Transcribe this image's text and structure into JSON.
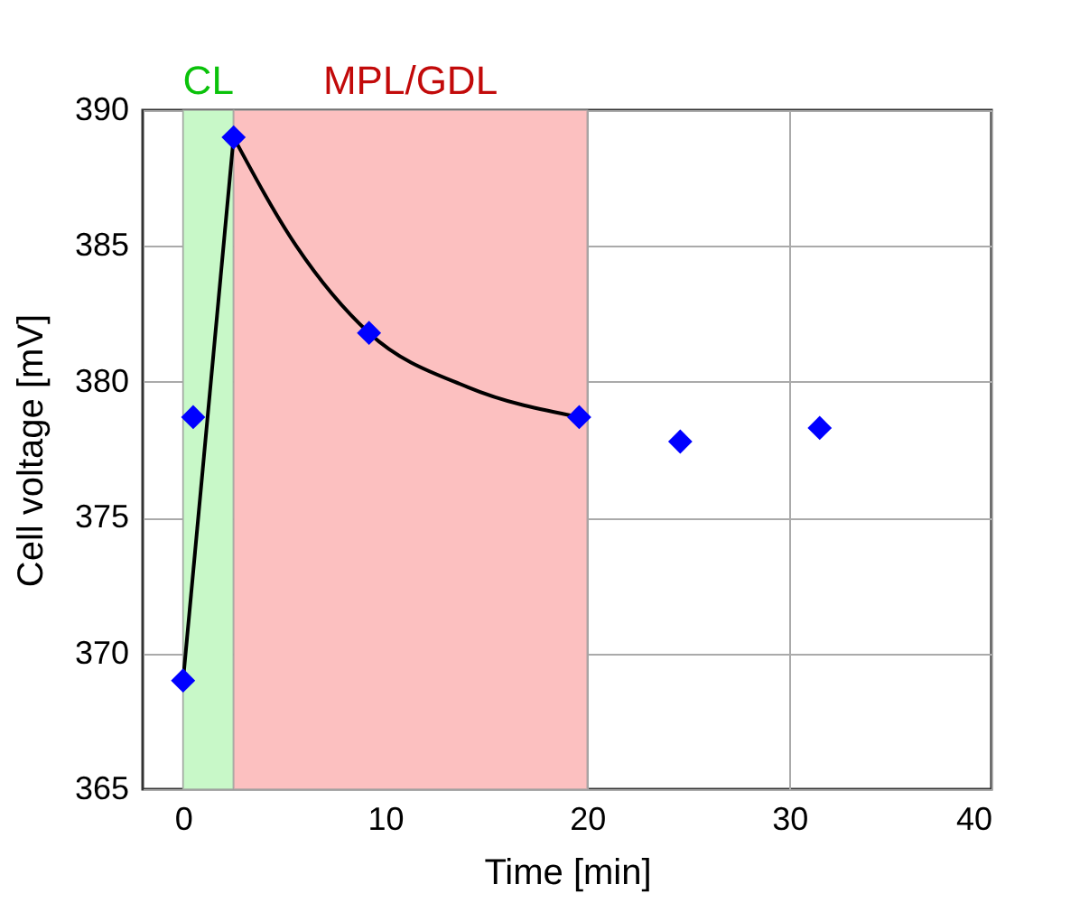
{
  "chart_data": {
    "type": "scatter",
    "xlabel": "Time [min]",
    "ylabel": "Cell voltage [mV]",
    "xlim": [
      -2,
      40
    ],
    "xticks": [
      0,
      10,
      20,
      30,
      40
    ],
    "ylim": [
      365,
      390
    ],
    "yticks": [
      365,
      370,
      375,
      380,
      385,
      390
    ],
    "grid": true,
    "series": [
      {
        "marker": "diamond",
        "color": "#0000ff",
        "x": [
          0,
          0.5,
          2.5,
          9.2,
          19.6,
          24.6,
          31.5
        ],
        "values": [
          369,
          378.7,
          389,
          381.8,
          378.7,
          377.8,
          378.3
        ]
      },
      {
        "type": "line",
        "marker": "none",
        "color": "#000000",
        "x": [
          0,
          2.5
        ],
        "values": [
          369,
          389
        ]
      },
      {
        "type": "line",
        "marker": "none",
        "color": "#000000",
        "x": [
          2.5,
          5.6,
          9.2,
          14.1,
          19.6
        ],
        "values": [
          389,
          385,
          381.8,
          379.8,
          378.7
        ]
      }
    ],
    "bands": [
      {
        "axis": "x",
        "from": 0,
        "to": 2.5,
        "label": "CL",
        "color": "#c8f8c8"
      },
      {
        "axis": "x",
        "from": 2.5,
        "to": 20,
        "label": "MPL/GDL",
        "color": "#fcc0c0"
      }
    ]
  }
}
